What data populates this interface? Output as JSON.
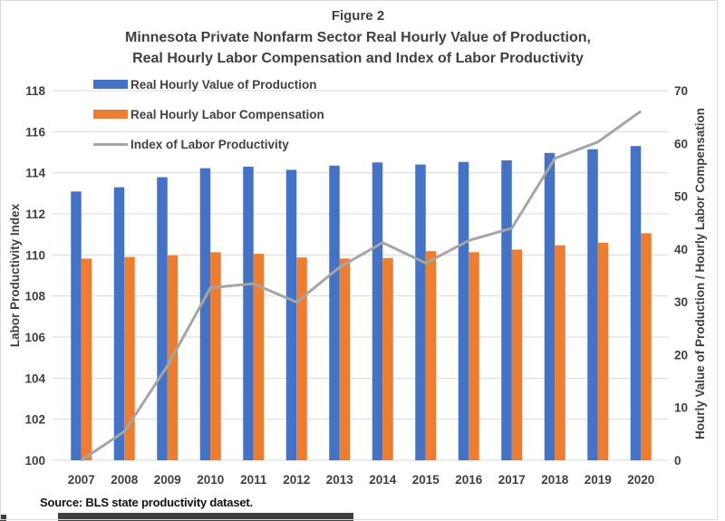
{
  "figure": {
    "title_line1": "Figure 2",
    "title_line2": "Minnesota Private Nonfarm Sector Real Hourly Value of Production,",
    "title_line3": "Real Hourly Labor Compensation and Index of Labor Productivity",
    "source": "Source: BLS state productivity dataset."
  },
  "colors": {
    "bar_blue": "#4472C4",
    "bar_orange": "#ED7D31",
    "line_gray": "#A5A5A5",
    "gridline": "#D9D9D9",
    "tick_mark": "#BFBFBF",
    "text": "#404040"
  },
  "chart_data": {
    "type": "bar",
    "title": "Figure 2 - Minnesota Private Nonfarm Sector Real Hourly Value of Production, Real Hourly Labor Compensation and Index of Labor Productivity",
    "grid": true,
    "legend_position": "top-left-inside",
    "categories": [
      "2007",
      "2008",
      "2009",
      "2010",
      "2011",
      "2012",
      "2013",
      "2014",
      "2015",
      "2016",
      "2017",
      "2018",
      "2019",
      "2020"
    ],
    "left_axis": {
      "label": "Labor Productivity Index",
      "min": 100,
      "max": 118,
      "tick_step": 2,
      "ticks": [
        100,
        102,
        104,
        106,
        108,
        110,
        112,
        114,
        116,
        118
      ]
    },
    "right_axis": {
      "label": "Hourly Value of Production / Hourly Labor Compensation",
      "min": 0,
      "max": 70,
      "tick_step": 10,
      "ticks": [
        0,
        10,
        20,
        30,
        40,
        50,
        60,
        70
      ]
    },
    "series": [
      {
        "name": "Real Hourly Value of Production",
        "type": "bar",
        "axis": "right",
        "color": "#4472C4",
        "values": [
          50.9,
          51.7,
          53.6,
          55.3,
          55.6,
          55.0,
          55.8,
          56.4,
          56.0,
          56.5,
          56.8,
          58.2,
          58.9,
          59.5
        ]
      },
      {
        "name": "Real Hourly Labor Compensation",
        "type": "bar",
        "axis": "right",
        "color": "#ED7D31",
        "values": [
          38.2,
          38.5,
          38.8,
          39.4,
          39.1,
          38.4,
          38.2,
          38.3,
          39.6,
          39.4,
          39.9,
          40.7,
          41.2,
          43.0
        ]
      },
      {
        "name": "Index of Labor Productivity",
        "type": "line",
        "axis": "left",
        "color": "#A5A5A5",
        "values": [
          100.0,
          101.4,
          104.6,
          108.4,
          108.6,
          107.7,
          109.4,
          110.6,
          109.6,
          110.7,
          111.3,
          114.7,
          115.5,
          117.0
        ]
      }
    ]
  }
}
